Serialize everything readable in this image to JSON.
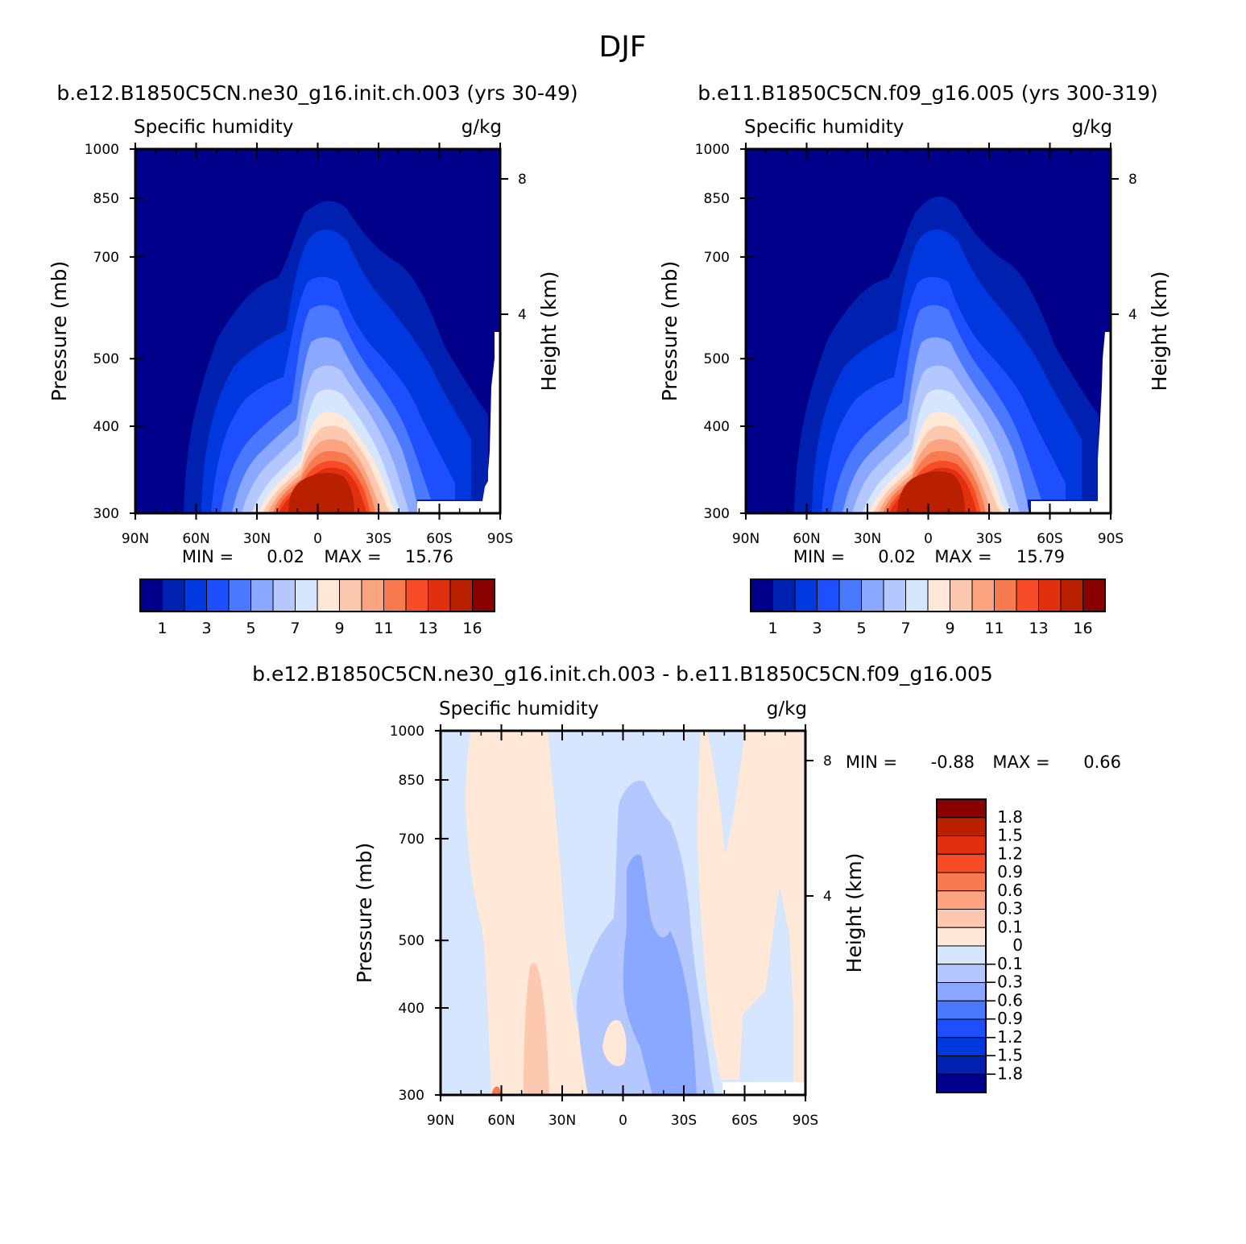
{
  "page_title": "DJF",
  "chart_data": [
    {
      "type": "heatmap",
      "title": "b.e12.B1850C5CN.ne30_g16.init.ch.003 (yrs 30-49)",
      "left_string": "Specific humidity",
      "right_string": "g/kg",
      "xlabel": "",
      "ylabel": "Pressure (mb)",
      "y2label": "Height (km)",
      "x_ticks": [
        "90N",
        "60N",
        "30N",
        "0",
        "30S",
        "60S",
        "90S"
      ],
      "y_ticks": [
        "300",
        "400",
        "500",
        "700",
        "850",
        "1000"
      ],
      "y_tick_values": [
        300,
        400,
        500,
        700,
        850,
        1000
      ],
      "y2_ticks": [
        "8",
        "4"
      ],
      "ylim": [
        1000,
        300
      ],
      "stats": {
        "min_label": "MIN =",
        "min": "0.02",
        "max_label": "MAX =",
        "max": "15.76"
      },
      "levels": [
        1,
        2,
        3,
        4,
        5,
        6,
        7,
        8,
        9,
        10,
        11,
        12,
        13,
        14,
        16
      ],
      "colorbar_labels": [
        "1",
        "3",
        "5",
        "7",
        "9",
        "11",
        "13",
        "16"
      ],
      "colors": [
        "#00008b",
        "#0020b0",
        "#0038e0",
        "#1e4fff",
        "#4a78ff",
        "#8aa8ff",
        "#b4c8ff",
        "#d6e6ff",
        "#ffe8d8",
        "#fcc8b0",
        "#fca480",
        "#f87a50",
        "#f84c28",
        "#e03010",
        "#b82000",
        "#880000"
      ]
    },
    {
      "type": "heatmap",
      "title": "b.e11.B1850C5CN.f09_g16.005 (yrs 300-319)",
      "left_string": "Specific humidity",
      "right_string": "g/kg",
      "xlabel": "",
      "ylabel": "Pressure (mb)",
      "y2label": "Height (km)",
      "x_ticks": [
        "90N",
        "60N",
        "30N",
        "0",
        "30S",
        "60S",
        "90S"
      ],
      "y_ticks": [
        "300",
        "400",
        "500",
        "700",
        "850",
        "1000"
      ],
      "y_tick_values": [
        300,
        400,
        500,
        700,
        850,
        1000
      ],
      "y2_ticks": [
        "8",
        "4"
      ],
      "ylim": [
        1000,
        300
      ],
      "stats": {
        "min_label": "MIN =",
        "min": "0.02",
        "max_label": "MAX =",
        "max": "15.79"
      },
      "levels": [
        1,
        2,
        3,
        4,
        5,
        6,
        7,
        8,
        9,
        10,
        11,
        12,
        13,
        14,
        16
      ],
      "colorbar_labels": [
        "1",
        "3",
        "5",
        "7",
        "9",
        "11",
        "13",
        "16"
      ],
      "colors": [
        "#00008b",
        "#0020b0",
        "#0038e0",
        "#1e4fff",
        "#4a78ff",
        "#8aa8ff",
        "#b4c8ff",
        "#d6e6ff",
        "#ffe8d8",
        "#fcc8b0",
        "#fca480",
        "#f87a50",
        "#f84c28",
        "#e03010",
        "#b82000",
        "#880000"
      ]
    },
    {
      "type": "heatmap",
      "title": "b.e12.B1850C5CN.ne30_g16.init.ch.003 - b.e11.B1850C5CN.f09_g16.005",
      "left_string": "Specific humidity",
      "right_string": "g/kg",
      "xlabel": "",
      "ylabel": "Pressure (mb)",
      "y2label": "Height (km)",
      "x_ticks": [
        "90N",
        "60N",
        "30N",
        "0",
        "30S",
        "60S",
        "90S"
      ],
      "y_ticks": [
        "300",
        "400",
        "500",
        "700",
        "850",
        "1000"
      ],
      "y_tick_values": [
        300,
        400,
        500,
        700,
        850,
        1000
      ],
      "y2_ticks": [
        "8",
        "4"
      ],
      "ylim": [
        1000,
        300
      ],
      "stats": {
        "min_label": "MIN =",
        "min": "-0.88",
        "max_label": "MAX =",
        "max": "0.66"
      },
      "colorbar_labels": [
        "1.8",
        "1.5",
        "1.2",
        "0.9",
        "0.6",
        "0.3",
        "0.1",
        "0",
        "-0.1",
        "-0.3",
        "-0.6",
        "-0.9",
        "-1.2",
        "-1.5",
        "-1.8"
      ],
      "colors": [
        "#880000",
        "#b82000",
        "#e03010",
        "#f84c28",
        "#f87a50",
        "#fca480",
        "#fcc8b0",
        "#ffe8d8",
        "#d6e6ff",
        "#b4c8ff",
        "#8aa8ff",
        "#4a78ff",
        "#1e4fff",
        "#0038e0",
        "#0020b0",
        "#00008b"
      ]
    }
  ]
}
